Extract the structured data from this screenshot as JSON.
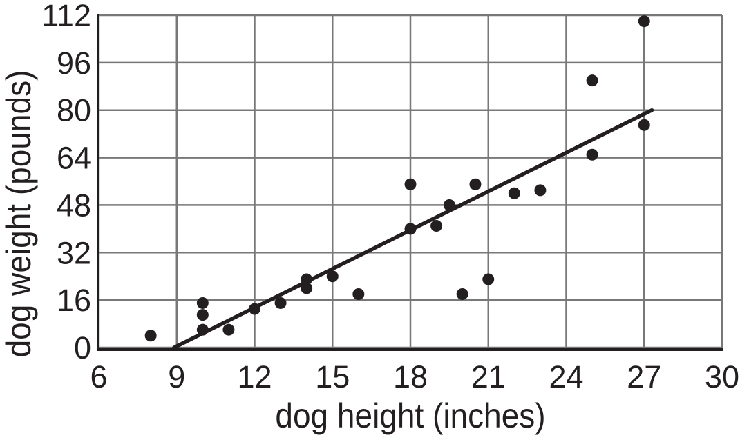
{
  "chart_data": {
    "type": "scatter",
    "title": "",
    "xlabel": "dog height (inches)",
    "ylabel": "dog weight (pounds)",
    "xlim": [
      6,
      30
    ],
    "ylim": [
      0,
      112
    ],
    "xticks": [
      6,
      9,
      12,
      15,
      18,
      21,
      24,
      27,
      30
    ],
    "yticks": [
      0,
      16,
      32,
      48,
      64,
      80,
      96,
      112
    ],
    "grid": true,
    "legend": false,
    "points": [
      [
        8,
        4
      ],
      [
        10,
        15
      ],
      [
        10,
        11
      ],
      [
        10,
        6
      ],
      [
        11,
        6
      ],
      [
        12,
        13
      ],
      [
        13,
        15
      ],
      [
        14,
        23
      ],
      [
        14,
        20
      ],
      [
        15,
        24
      ],
      [
        16,
        18
      ],
      [
        18,
        40
      ],
      [
        18,
        55
      ],
      [
        19,
        41
      ],
      [
        19.5,
        48
      ],
      [
        20,
        18
      ],
      [
        20.5,
        55
      ],
      [
        21,
        23
      ],
      [
        22,
        52
      ],
      [
        23,
        53
      ],
      [
        25,
        65
      ],
      [
        25,
        90
      ],
      [
        27,
        75
      ],
      [
        27,
        110
      ]
    ],
    "trend_line": {
      "x_start": 8.9,
      "y_start": 0,
      "x_end": 27.3,
      "y_end": 80,
      "slope_approx": 4.35
    },
    "colors": {
      "point": "#231f20",
      "trend_line": "#231f20",
      "axis": "#231f20",
      "grid": "#787878",
      "label": "#231f20",
      "background": "#ffffff"
    }
  }
}
